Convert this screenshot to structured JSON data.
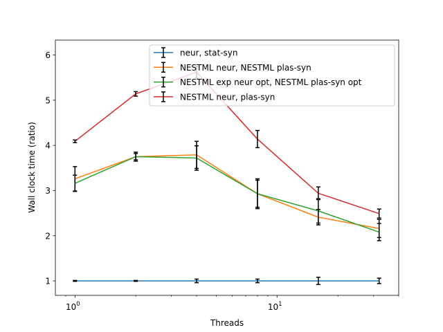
{
  "chart_data": {
    "type": "line",
    "xscale": "log",
    "x": [
      1,
      2,
      4,
      8,
      16,
      32
    ],
    "xlabel": "Threads",
    "ylabel": "Wall clock time (ratio)",
    "xlim": [
      0.8,
      40
    ],
    "ylim": [
      0.68,
      6.33
    ],
    "xticks": [
      {
        "value": 1,
        "base": "10",
        "exp": "0"
      },
      {
        "value": 10,
        "base": "10",
        "exp": "1"
      }
    ],
    "yticks": [
      "1",
      "2",
      "3",
      "4",
      "5",
      "6"
    ],
    "legend_position": "top-right",
    "grid": false,
    "series": [
      {
        "name": "neur, stat-syn",
        "color": "#1f77b4",
        "values": [
          1.0,
          1.0,
          1.0,
          1.0,
          1.0,
          1.0
        ],
        "errors": [
          0.01,
          0.01,
          0.04,
          0.04,
          0.08,
          0.06
        ]
      },
      {
        "name": "NESTML neur, NESTML plas-syn",
        "color": "#ff7f0e",
        "values": [
          3.26,
          3.75,
          3.79,
          2.93,
          2.41,
          2.16
        ],
        "errors": [
          0.27,
          0.1,
          0.3,
          0.33,
          0.17,
          0.2
        ]
      },
      {
        "name": "NESTML exp neur opt, NESTML plas-syn opt",
        "color": "#2ca02c",
        "values": [
          3.16,
          3.75,
          3.72,
          2.93,
          2.55,
          2.08
        ],
        "errors": [
          0.18,
          0.07,
          0.27,
          0.3,
          0.27,
          0.19
        ]
      },
      {
        "name": "NESTML neur, plas-syn",
        "color": "#d62728",
        "values": [
          4.09,
          5.14,
          5.62,
          4.14,
          2.94,
          2.49
        ],
        "errors": [
          0.03,
          0.05,
          0.13,
          0.19,
          0.14,
          0.1
        ]
      }
    ]
  }
}
